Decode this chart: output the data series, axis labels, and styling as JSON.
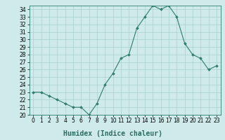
{
  "x": [
    0,
    1,
    2,
    3,
    4,
    5,
    6,
    7,
    8,
    9,
    10,
    11,
    12,
    13,
    14,
    15,
    16,
    17,
    18,
    19,
    20,
    21,
    22,
    23
  ],
  "y": [
    23.0,
    23.0,
    22.5,
    22.0,
    21.5,
    21.0,
    21.0,
    20.0,
    21.5,
    24.0,
    25.5,
    27.5,
    28.0,
    31.5,
    33.0,
    34.5,
    34.0,
    34.5,
    33.0,
    29.5,
    28.0,
    27.5,
    26.0,
    26.5
  ],
  "xlabel": "Humidex (Indice chaleur)",
  "xlim": [
    -0.5,
    23.5
  ],
  "ylim": [
    20,
    34.5
  ],
  "yticks": [
    20,
    21,
    22,
    23,
    24,
    25,
    26,
    27,
    28,
    29,
    30,
    31,
    32,
    33,
    34
  ],
  "xticks": [
    0,
    1,
    2,
    3,
    4,
    5,
    6,
    7,
    8,
    9,
    10,
    11,
    12,
    13,
    14,
    15,
    16,
    17,
    18,
    19,
    20,
    21,
    22,
    23
  ],
  "line_color": "#2e7d6e",
  "marker_color": "#2e7d6e",
  "bg_color": "#ceeaea",
  "grid_color": "#aacfcf",
  "xlabel_color": "#2e6b60",
  "xlabel_fontsize": 7,
  "tick_fontsize": 5.5
}
